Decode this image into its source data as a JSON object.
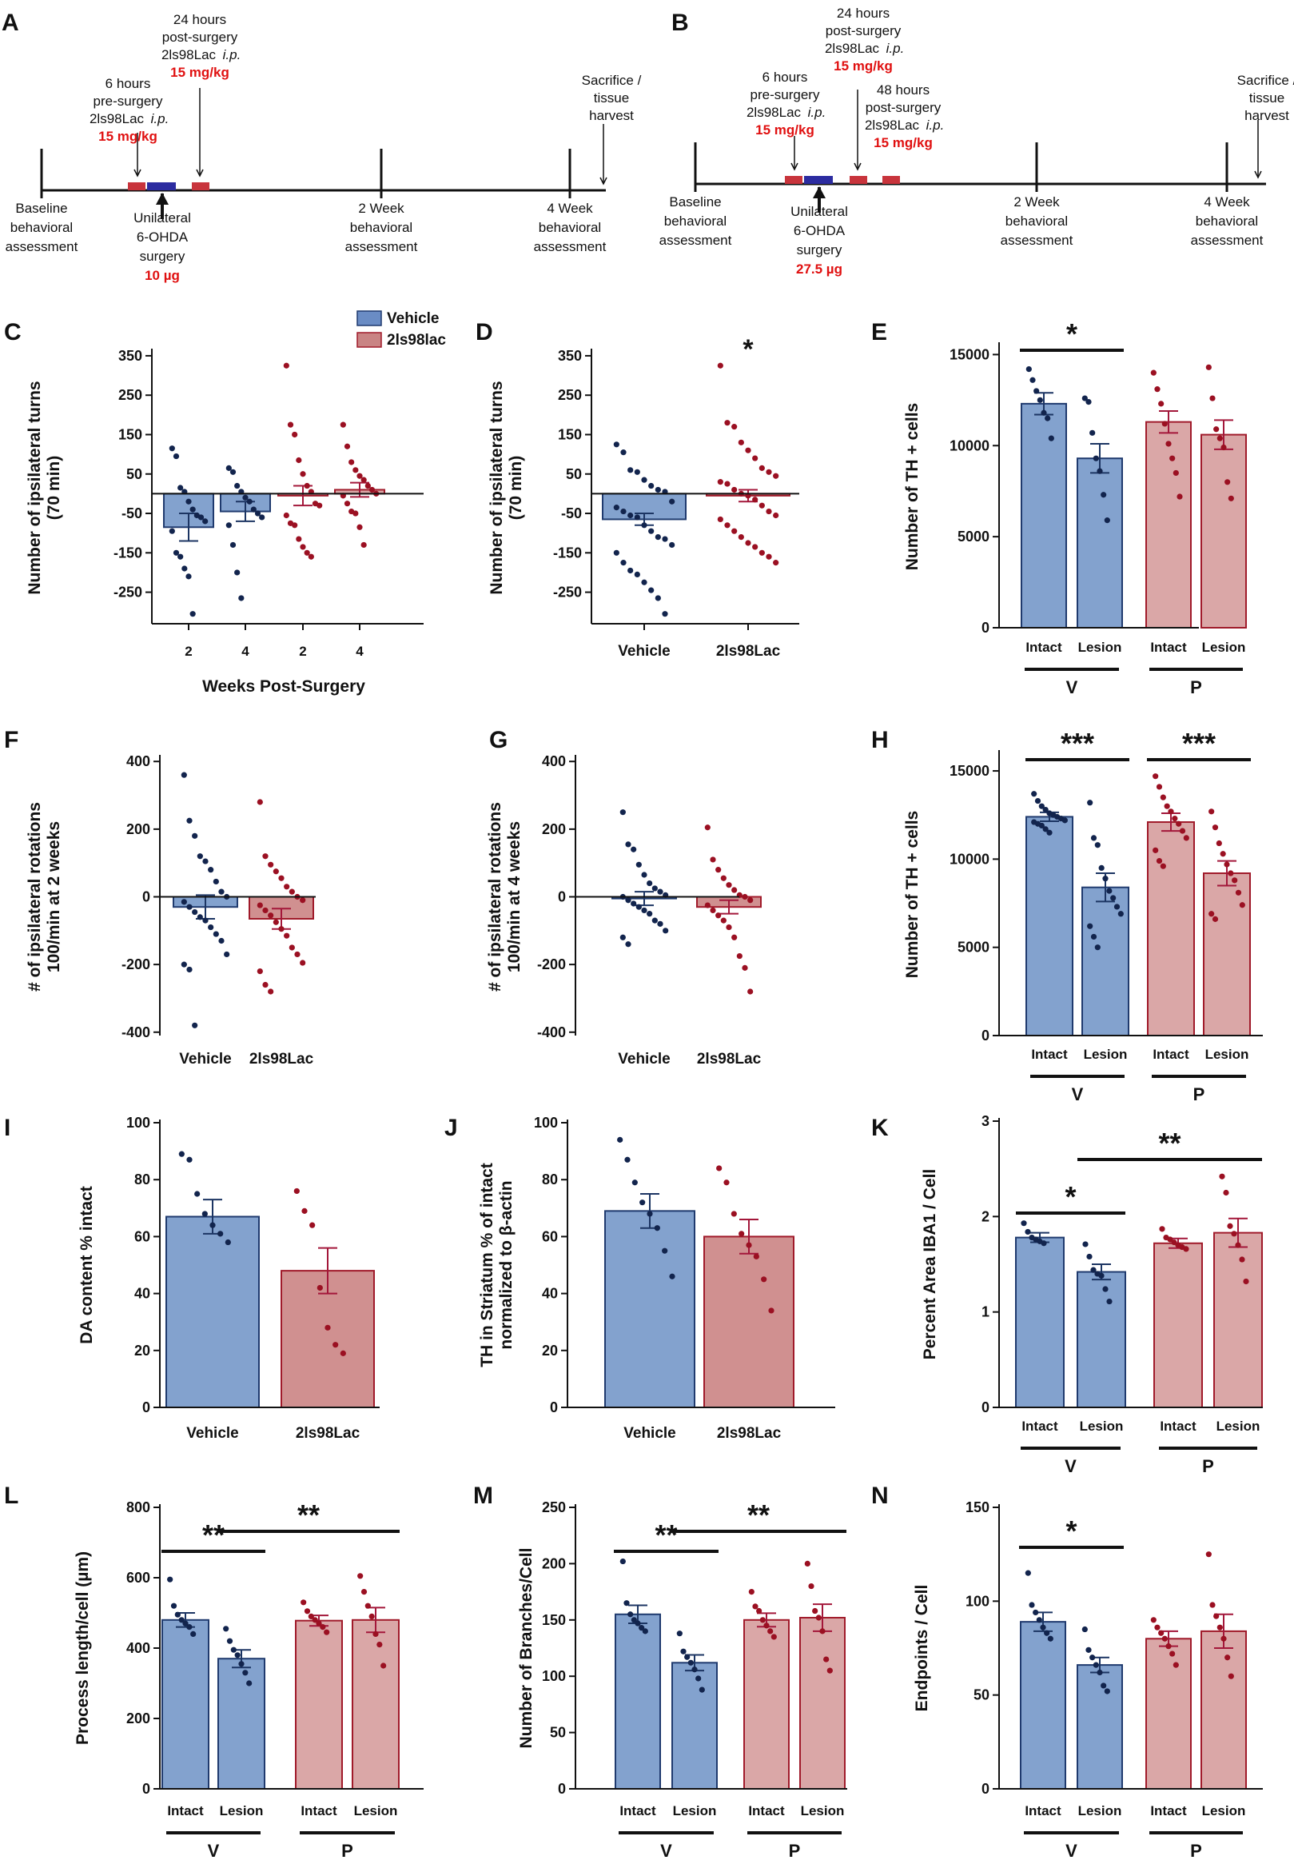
{
  "colors": {
    "vehicle_fill": "#7c9dcb",
    "vehicle_dark": "#1f3a6e",
    "drug_fill": "#cd8a8a",
    "drug_dark": "#a01a2a",
    "v_dot": "#12244d",
    "p_dot": "#9b1022",
    "red_text": "#e01010",
    "blue_box": "#2c2ca0",
    "red_box": "#c8343c",
    "lesion_v_stroke": "#1c3563",
    "lesion_p_stroke": "#a3173a"
  },
  "timelines": [
    {
      "letter": "A",
      "labels": {
        "pre": [
          "6 hours",
          "pre-surgery"
        ],
        "pre_drug": "2ls98Lac",
        "pre_ip": "i.p.",
        "pre_dose": "15 mg/kg",
        "post24": [
          "24 hours",
          "post-surgery"
        ],
        "post24_drug": "2ls98Lac",
        "post24_ip": "i.p.",
        "post24_dose": "15 mg/kg",
        "surgery": [
          "Unilateral",
          "6-OHDA",
          "surgery"
        ],
        "surgery_dose": "10 µg",
        "baseline": [
          "Baseline",
          "behavioral",
          "assessment"
        ],
        "wk2": [
          "2 Week",
          "behavioral",
          "assessment"
        ],
        "wk4": [
          "4 Week",
          "behavioral",
          "assessment"
        ],
        "sac": [
          "Sacrifice /",
          "tissue",
          "harvest"
        ]
      }
    },
    {
      "letter": "B",
      "labels": {
        "pre": [
          "6 hours",
          "pre-surgery"
        ],
        "pre_drug": "2ls98Lac",
        "pre_ip": "i.p.",
        "pre_dose": "15 mg/kg",
        "post24": [
          "24 hours",
          "post-surgery"
        ],
        "post24_drug": "2ls98Lac",
        "post24_ip": "i.p.",
        "post24_dose": "15 mg/kg",
        "post48": [
          "48 hours",
          "post-surgery"
        ],
        "post48_drug": "2ls98Lac",
        "post48_ip": "i.p.",
        "post48_dose": "15 mg/kg",
        "surgery": [
          "Unilateral",
          "6-OHDA",
          "surgery"
        ],
        "surgery_dose": "27.5 µg",
        "baseline": [
          "Baseline",
          "behavioral",
          "assessment"
        ],
        "wk2": [
          "2 Week",
          "behavioral",
          "assessment"
        ],
        "wk4": [
          "4 Week",
          "behavioral",
          "assessment"
        ],
        "sac": [
          "Sacrifice /",
          "tissue",
          "harvest"
        ]
      }
    }
  ],
  "chart_data": [
    {
      "id": "C",
      "type": "bar",
      "title": "",
      "ylabel": [
        "Number of ipsilateral turns",
        "(70 min)"
      ],
      "xlabel": "Weeks Post-Surgery",
      "ylim": [
        -330,
        360
      ],
      "yticks": [
        350,
        250,
        150,
        50,
        -50,
        -150,
        -250
      ],
      "baseline": 0,
      "categories": [
        "2",
        "4",
        "2",
        "4"
      ],
      "groups": [
        "v",
        "v",
        "p",
        "p"
      ],
      "values": [
        -85,
        -45,
        -5,
        10
      ],
      "errors": [
        35,
        25,
        25,
        18
      ],
      "legend": [
        {
          "name": "Vehicle",
          "color": "#6a8cc4"
        },
        {
          "name": "2ls98lac",
          "color": "#c98484"
        }
      ],
      "points": [
        [
          115,
          95,
          15,
          5,
          -20,
          -40,
          -55,
          -60,
          -70,
          -95,
          -150,
          -160,
          -190,
          -210,
          -305
        ],
        [
          65,
          55,
          20,
          5,
          -10,
          -20,
          -40,
          -50,
          -60,
          -80,
          -130,
          -200,
          -265
        ],
        [
          325,
          175,
          150,
          85,
          50,
          20,
          5,
          -25,
          -30,
          -55,
          -75,
          -80,
          -115,
          -135,
          -150,
          -160
        ],
        [
          175,
          120,
          80,
          60,
          45,
          35,
          20,
          10,
          0,
          -5,
          -25,
          -45,
          -50,
          -85,
          -130
        ]
      ]
    },
    {
      "id": "D",
      "type": "bar",
      "ylabel": [
        "Number of ipsilateral turns",
        "(70 min)"
      ],
      "ylim": [
        -330,
        360
      ],
      "yticks": [
        350,
        250,
        150,
        50,
        -50,
        -150,
        -250
      ],
      "baseline": 0,
      "categories": [
        "Vehicle",
        "2ls98Lac"
      ],
      "groups": [
        "v",
        "p"
      ],
      "values": [
        -65,
        -5
      ],
      "errors": [
        15,
        15
      ],
      "stars": [
        {
          "text": "*",
          "over": 1
        }
      ],
      "points": [
        [
          125,
          105,
          60,
          55,
          35,
          20,
          10,
          5,
          -20,
          -35,
          -45,
          -55,
          -60,
          -80,
          -95,
          -110,
          -115,
          -130,
          -150,
          -175,
          -195,
          -205,
          -225,
          -245,
          -265,
          -305
        ],
        [
          325,
          180,
          170,
          130,
          110,
          90,
          65,
          55,
          45,
          30,
          25,
          10,
          0,
          -5,
          -15,
          -30,
          -45,
          -55,
          -65,
          -80,
          -95,
          -110,
          -125,
          -135,
          -150,
          -160,
          -175
        ]
      ]
    },
    {
      "id": "E",
      "type": "bar",
      "ylabel": [
        "Number of TH + cells"
      ],
      "ylim": [
        0,
        15500
      ],
      "yticks": [
        0,
        5000,
        10000,
        15000
      ],
      "baseline": 0,
      "categories": [
        "Intact",
        "Lesion",
        "Intact",
        "Lesion"
      ],
      "groups": [
        "v",
        "v",
        "p",
        "p"
      ],
      "fill_style": [
        "solid",
        "solid",
        "solid",
        "solid"
      ],
      "values": [
        12300,
        9300,
        11300,
        10600
      ],
      "errors": [
        600,
        800,
        600,
        800
      ],
      "group_labels": [
        "V",
        "P"
      ],
      "stars": [
        {
          "text": "*",
          "from": 0,
          "to": 1
        }
      ],
      "points": [
        [
          14200,
          13600,
          13000,
          12500,
          11800,
          11500,
          10400
        ],
        [
          12600,
          12400,
          10700,
          9300,
          8600,
          7300,
          5900
        ],
        [
          14000,
          13100,
          12300,
          11200,
          10100,
          9300,
          8500,
          7200
        ],
        [
          14300,
          12600,
          10900,
          10400,
          9900,
          8000,
          7100
        ]
      ]
    },
    {
      "id": "F",
      "type": "bar",
      "ylabel": [
        "# of ipsilateral rotations",
        "100/min at 2 weeks"
      ],
      "ylim": [
        -410,
        410
      ],
      "yticks": [
        400,
        200,
        0,
        -200,
        -400
      ],
      "baseline": 0,
      "categories": [
        "Vehicle",
        "2ls98Lac"
      ],
      "groups": [
        "v",
        "p"
      ],
      "values": [
        -30,
        -65
      ],
      "errors": [
        35,
        30
      ],
      "points": [
        [
          360,
          225,
          180,
          120,
          105,
          80,
          45,
          15,
          0,
          -15,
          -30,
          -45,
          -60,
          -70,
          -90,
          -110,
          -130,
          -170,
          -200,
          -215,
          -380
        ],
        [
          280,
          120,
          95,
          75,
          55,
          30,
          15,
          0,
          -10,
          -25,
          -40,
          -55,
          -75,
          -95,
          -115,
          -150,
          -170,
          -195,
          -220,
          -260,
          -280
        ]
      ]
    },
    {
      "id": "G",
      "type": "bar",
      "ylabel": [
        "# of ipsilateral rotations",
        "100/min at 4 weeks"
      ],
      "ylim": [
        -410,
        410
      ],
      "yticks": [
        400,
        200,
        0,
        -200,
        -400
      ],
      "baseline": 0,
      "categories": [
        "Vehicle",
        "2ls98Lac"
      ],
      "groups": [
        "v",
        "p"
      ],
      "values": [
        -5,
        -30
      ],
      "errors": [
        20,
        20
      ],
      "points": [
        [
          250,
          155,
          140,
          95,
          65,
          40,
          25,
          15,
          5,
          0,
          -10,
          -20,
          -30,
          -40,
          -50,
          -70,
          -80,
          -100,
          -120,
          -140
        ],
        [
          205,
          110,
          80,
          55,
          35,
          20,
          5,
          0,
          -10,
          -25,
          -40,
          -55,
          -70,
          -90,
          -120,
          -175,
          -210,
          -280
        ]
      ]
    },
    {
      "id": "H",
      "type": "bar",
      "ylabel": [
        "Number of TH + cells"
      ],
      "ylim": [
        0,
        16000
      ],
      "yticks": [
        0,
        5000,
        10000,
        15000
      ],
      "baseline": 0,
      "categories": [
        "Intact",
        "Lesion",
        "Intact",
        "Lesion"
      ],
      "groups": [
        "v",
        "v",
        "p",
        "p"
      ],
      "values": [
        12400,
        8400,
        12100,
        9200
      ],
      "errors": [
        250,
        800,
        500,
        700
      ],
      "group_labels": [
        "V",
        "P"
      ],
      "stars": [
        {
          "text": "***",
          "from": 0,
          "to": 1
        },
        {
          "text": "***",
          "from": 2,
          "to": 3
        }
      ],
      "points": [
        [
          13700,
          13300,
          13000,
          12800,
          12600,
          12500,
          12400,
          12300,
          12200,
          12100,
          12000,
          11900,
          11700,
          11500
        ],
        [
          13200,
          11200,
          10800,
          9500,
          8900,
          8200,
          7800,
          7300,
          6900,
          6200,
          5600,
          5000
        ],
        [
          14700,
          14100,
          13500,
          13000,
          12700,
          12300,
          12000,
          11600,
          11200,
          10500,
          9900,
          9600
        ],
        [
          12700,
          11800,
          10900,
          10300,
          9700,
          9200,
          8800,
          8100,
          7400,
          6900,
          6600
        ]
      ]
    },
    {
      "id": "I",
      "type": "bar",
      "ylabel": [
        "DA  content % intact"
      ],
      "ylim": [
        0,
        100
      ],
      "yticks": [
        0,
        20,
        40,
        60,
        80,
        100
      ],
      "baseline": 0,
      "categories": [
        "Vehicle",
        "2ls98Lac"
      ],
      "groups": [
        "v",
        "p"
      ],
      "values": [
        67,
        48
      ],
      "errors": [
        6,
        8
      ],
      "points": [
        [
          89,
          87,
          75,
          68,
          64,
          61,
          58
        ],
        [
          76,
          69,
          64,
          42,
          28,
          22,
          19
        ]
      ]
    },
    {
      "id": "J",
      "type": "bar",
      "ylabel": [
        "TH in Striatum % of intact",
        "normalized to β-actin"
      ],
      "ylim": [
        0,
        100
      ],
      "yticks": [
        0,
        20,
        40,
        60,
        80,
        100
      ],
      "baseline": 0,
      "categories": [
        "Vehicle",
        "2ls98Lac"
      ],
      "groups": [
        "v",
        "p"
      ],
      "values": [
        69,
        60
      ],
      "errors": [
        6,
        6
      ],
      "points": [
        [
          94,
          87,
          79,
          72,
          68,
          63,
          55,
          46
        ],
        [
          84,
          79,
          68,
          61,
          57,
          53,
          45,
          34
        ]
      ]
    },
    {
      "id": "K",
      "type": "bar",
      "ylabel": [
        "Percent Area IBA1 / Cell"
      ],
      "ylim": [
        0,
        3
      ],
      "yticks": [
        0,
        1,
        2,
        3
      ],
      "baseline": 0,
      "categories": [
        "Intact",
        "Lesion",
        "Intact",
        "Lesion"
      ],
      "groups": [
        "v",
        "v",
        "p",
        "p"
      ],
      "values": [
        1.78,
        1.42,
        1.72,
        1.83
      ],
      "errors": [
        0.05,
        0.08,
        0.05,
        0.15
      ],
      "group_labels": [
        "V",
        "P"
      ],
      "stars": [
        {
          "text": "*",
          "from": 0,
          "to": 1
        },
        {
          "text": "**",
          "from": 1,
          "to": 3
        }
      ],
      "points": [
        [
          1.93,
          1.84,
          1.78,
          1.76,
          1.74,
          1.72
        ],
        [
          1.71,
          1.58,
          1.44,
          1.4,
          1.38,
          1.24,
          1.11
        ],
        [
          1.87,
          1.78,
          1.76,
          1.73,
          1.7,
          1.68,
          1.66
        ],
        [
          2.42,
          2.25,
          1.9,
          1.82,
          1.7,
          1.55,
          1.32
        ]
      ]
    },
    {
      "id": "L",
      "type": "bar",
      "ylabel": [
        "Process length/cell (µm)"
      ],
      "ylim": [
        0,
        800
      ],
      "yticks": [
        0,
        200,
        400,
        600,
        800
      ],
      "baseline": 0,
      "categories": [
        "Intact",
        "Lesion",
        "Intact",
        "Lesion"
      ],
      "groups": [
        "v",
        "v",
        "p",
        "p"
      ],
      "values": [
        480,
        370,
        478,
        480
      ],
      "errors": [
        20,
        25,
        15,
        35
      ],
      "group_labels": [
        "V",
        "P"
      ],
      "stars": [
        {
          "text": "**",
          "from": 0,
          "to": 1
        },
        {
          "text": "**",
          "from": 1,
          "to": 3
        }
      ],
      "points": [
        [
          595,
          520,
          495,
          480,
          470,
          460,
          440
        ],
        [
          455,
          420,
          395,
          380,
          355,
          330,
          300
        ],
        [
          530,
          505,
          490,
          480,
          470,
          460,
          445
        ],
        [
          605,
          560,
          520,
          490,
          440,
          410,
          350
        ]
      ]
    },
    {
      "id": "M",
      "type": "bar",
      "ylabel": [
        "Number of Branches/Cell"
      ],
      "ylim": [
        0,
        250
      ],
      "yticks": [
        0,
        50,
        100,
        150,
        200,
        250
      ],
      "baseline": 0,
      "categories": [
        "Intact",
        "Lesion",
        "Intact",
        "Lesion"
      ],
      "groups": [
        "v",
        "v",
        "p",
        "p"
      ],
      "values": [
        155,
        112,
        150,
        152
      ],
      "errors": [
        8,
        7,
        6,
        12
      ],
      "group_labels": [
        "V",
        "P"
      ],
      "stars": [
        {
          "text": "**",
          "from": 0,
          "to": 1
        },
        {
          "text": "**",
          "from": 1,
          "to": 3
        }
      ],
      "points": [
        [
          202,
          165,
          155,
          150,
          147,
          143,
          140
        ],
        [
          138,
          122,
          117,
          112,
          106,
          98,
          88
        ],
        [
          175,
          162,
          158,
          150,
          145,
          140,
          135
        ],
        [
          200,
          180,
          158,
          152,
          140,
          115,
          105
        ]
      ]
    },
    {
      "id": "N",
      "type": "bar",
      "ylabel": [
        "Endpoints / Cell"
      ],
      "ylim": [
        0,
        150
      ],
      "yticks": [
        0,
        50,
        100,
        150
      ],
      "baseline": 0,
      "categories": [
        "Intact",
        "Lesion",
        "Intact",
        "Lesion"
      ],
      "groups": [
        "v",
        "v",
        "p",
        "p"
      ],
      "values": [
        89,
        66,
        80,
        84
      ],
      "errors": [
        5,
        4,
        4,
        9
      ],
      "group_labels": [
        "V",
        "P"
      ],
      "stars": [
        {
          "text": "*",
          "from": 0,
          "to": 1
        }
      ],
      "points": [
        [
          115,
          98,
          94,
          90,
          86,
          83,
          80
        ],
        [
          85,
          74,
          70,
          66,
          62,
          55,
          52
        ],
        [
          90,
          86,
          83,
          80,
          76,
          72,
          66
        ],
        [
          125,
          98,
          92,
          86,
          80,
          70,
          60
        ]
      ]
    }
  ]
}
